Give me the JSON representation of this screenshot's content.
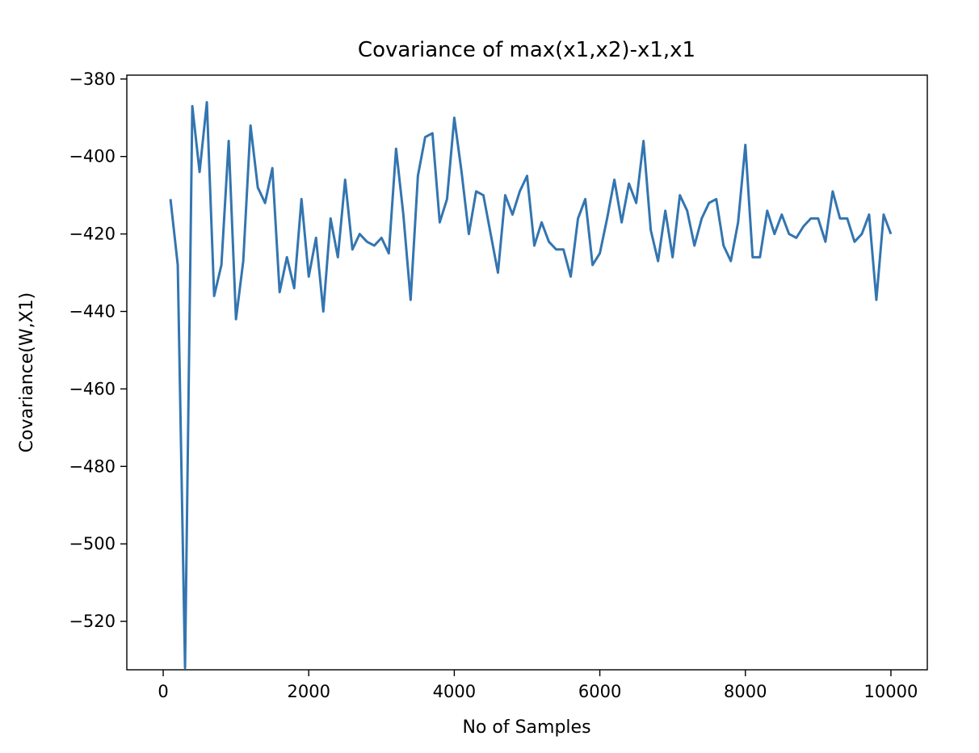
{
  "chart_data": {
    "type": "line",
    "title": "Covariance of max(x1,x2)-x1,x1",
    "xlabel": "No of Samples",
    "ylabel": "Covariance(W,X1)",
    "xlim": [
      -500,
      10500
    ],
    "ylim": [
      -532.5,
      -379
    ],
    "grid": false,
    "legend": "none",
    "line_color": "#3375b0",
    "x_ticks": [
      0,
      2000,
      4000,
      6000,
      8000,
      10000
    ],
    "x_tick_labels": [
      "0",
      "2000",
      "4000",
      "6000",
      "8000",
      "10000"
    ],
    "y_ticks": [
      -380,
      -400,
      -420,
      -440,
      -460,
      -480,
      -500,
      -520
    ],
    "y_tick_labels": [
      "−380",
      "−400",
      "−420",
      "−440",
      "−460",
      "−480",
      "−500",
      "−520"
    ],
    "series": [
      {
        "x": [
          100,
          200,
          300,
          400,
          500,
          600,
          700,
          800,
          900,
          1000,
          1100,
          1200,
          1300,
          1400,
          1500,
          1600,
          1700,
          1800,
          1900,
          2000,
          2100,
          2200,
          2300,
          2400,
          2500,
          2600,
          2700,
          2800,
          2900,
          3000,
          3100,
          3200,
          3300,
          3400,
          3500,
          3600,
          3700,
          3800,
          3900,
          4000,
          4100,
          4200,
          4300,
          4400,
          4500,
          4600,
          4700,
          4800,
          4900,
          5000,
          5100,
          5200,
          5300,
          5400,
          5500,
          5600,
          5700,
          5800,
          5900,
          6000,
          6100,
          6200,
          6300,
          6400,
          6500,
          6600,
          6700,
          6800,
          6900,
          7000,
          7100,
          7200,
          7300,
          7400,
          7500,
          7600,
          7700,
          7800,
          7900,
          8000,
          8100,
          8200,
          8300,
          8400,
          8500,
          8600,
          8700,
          8800,
          8900,
          9000,
          9100,
          9200,
          9300,
          9400,
          9500,
          9600,
          9700,
          9800,
          9900,
          10000
        ],
        "y": [
          -411,
          -428,
          -532,
          -387,
          -404,
          -386,
          -436,
          -428,
          -396,
          -442,
          -427,
          -392,
          -408,
          -412,
          -403,
          -435,
          -426,
          -434,
          -411,
          -431,
          -421,
          -440,
          -416,
          -426,
          -406,
          -424,
          -420,
          -422,
          -423,
          -421,
          -425,
          -398,
          -415,
          -437,
          -405,
          -395,
          -394,
          -417,
          -411,
          -390,
          -404,
          -420,
          -409,
          -410,
          -420,
          -430,
          -410,
          -415,
          -409,
          -405,
          -423,
          -417,
          -422,
          -424,
          -424,
          -431,
          -416,
          -411,
          -428,
          -425,
          -416,
          -406,
          -417,
          -407,
          -412,
          -396,
          -419,
          -427,
          -414,
          -426,
          -410,
          -414,
          -423,
          -416,
          -412,
          -411,
          -423,
          -427,
          -417,
          -397,
          -426,
          -426,
          -414,
          -420,
          -415,
          -420,
          -421,
          -418,
          -416,
          -416,
          -422,
          -409,
          -416,
          -416,
          -422,
          -420,
          -415,
          -437,
          -415,
          -420
        ]
      }
    ]
  }
}
